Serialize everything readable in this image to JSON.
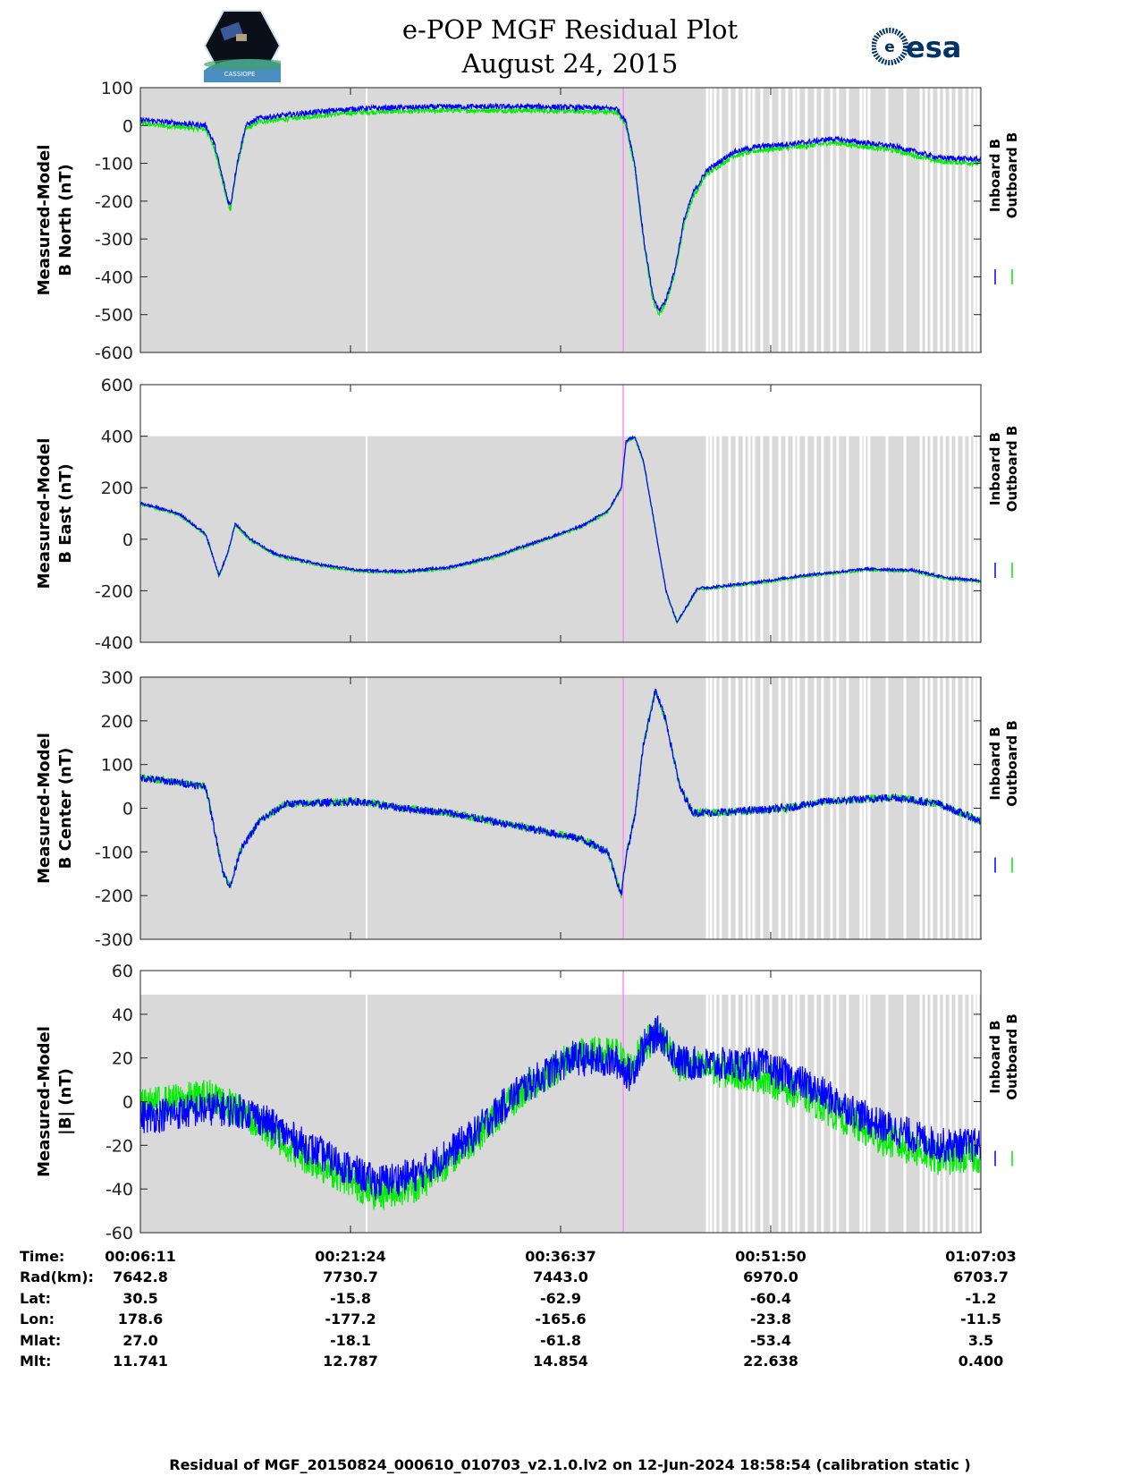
{
  "header": {
    "title_line1": "e-POP MGF Residual Plot",
    "title_line2": "August 24, 2015",
    "left_logo_text": "CASSIOPE",
    "right_logo_text": "esa"
  },
  "footer": "Residual of MGF_20150824_000610_010703_v2.1.0.lv2 on 12-Jun-2024 18:58:54 (calibration static )",
  "colors": {
    "inboard": "#0000ff",
    "outboard": "#00ee00",
    "background": "#d9d9d9",
    "marker": "#ff88ff"
  },
  "chart_data": {
    "type": "line",
    "x_unit": "seconds since 00:00:00 UT",
    "xlim": [
      371,
      4023
    ],
    "x_ticks": [
      371,
      1284,
      2197,
      3110,
      4023
    ],
    "legend": [
      "Inboard B",
      "Outboard B"
    ],
    "legend_placement": "right",
    "marker_time": 2469,
    "white_line_time": 1354,
    "gap_times": [
      2834,
      2850,
      2869,
      2892,
      2931,
      2963,
      2994,
      3017,
      3036,
      3071,
      3110,
      3149,
      3180,
      3211,
      3230,
      3265,
      3304,
      3335,
      3374,
      3401,
      3444,
      3502,
      3518,
      3537,
      3615,
      3693,
      3763,
      3786,
      3809,
      3840,
      3864,
      3891,
      3918,
      3949,
      3976,
      3996,
      4011
    ],
    "panels": [
      {
        "ylabel_line1": "Measured-Model",
        "ylabel_line2": "B North (nT)",
        "ylim": [
          -600,
          100
        ],
        "gray_max": 100,
        "yticks": [
          "100",
          "0",
          "-100",
          "-200",
          "-300",
          "-400",
          "-500",
          "-600"
        ],
        "noise": 7,
        "inboard": [
          [
            371,
            15
          ],
          [
            655,
            0
          ],
          [
            693,
            -50
          ],
          [
            752,
            -200
          ],
          [
            763,
            -210
          ],
          [
            791,
            -100
          ],
          [
            829,
            0
          ],
          [
            888,
            20
          ],
          [
            1121,
            35
          ],
          [
            1315,
            45
          ],
          [
            1704,
            50
          ],
          [
            2092,
            50
          ],
          [
            2442,
            45
          ],
          [
            2481,
            10
          ],
          [
            2519,
            -100
          ],
          [
            2558,
            -300
          ],
          [
            2597,
            -450
          ],
          [
            2624,
            -490
          ],
          [
            2655,
            -460
          ],
          [
            2694,
            -380
          ],
          [
            2733,
            -250
          ],
          [
            2772,
            -180
          ],
          [
            2830,
            -120
          ],
          [
            2947,
            -70
          ],
          [
            3063,
            -55
          ],
          [
            3258,
            -45
          ],
          [
            3374,
            -35
          ],
          [
            3646,
            -55
          ],
          [
            3840,
            -85
          ],
          [
            4023,
            -90
          ]
        ],
        "outboard_offset": -10
      },
      {
        "ylabel_line1": "Measured-Model",
        "ylabel_line2": "B East (nT)",
        "ylim": [
          -400,
          600
        ],
        "gray_max": 400,
        "yticks": [
          "600",
          "400",
          "200",
          "0",
          "-200",
          "-400"
        ],
        "noise": 5,
        "inboard": [
          [
            371,
            140
          ],
          [
            538,
            100
          ],
          [
            655,
            20
          ],
          [
            713,
            -140
          ],
          [
            752,
            -50
          ],
          [
            783,
            60
          ],
          [
            849,
            0
          ],
          [
            965,
            -60
          ],
          [
            1160,
            -100
          ],
          [
            1315,
            -120
          ],
          [
            1509,
            -125
          ],
          [
            1704,
            -110
          ],
          [
            1898,
            -70
          ],
          [
            2092,
            -10
          ],
          [
            2286,
            50
          ],
          [
            2403,
            110
          ],
          [
            2461,
            200
          ],
          [
            2481,
            380
          ],
          [
            2519,
            400
          ],
          [
            2558,
            300
          ],
          [
            2597,
            100
          ],
          [
            2655,
            -200
          ],
          [
            2702,
            -320
          ],
          [
            2752,
            -250
          ],
          [
            2791,
            -190
          ],
          [
            2869,
            -185
          ],
          [
            3063,
            -165
          ],
          [
            3258,
            -140
          ],
          [
            3529,
            -115
          ],
          [
            3724,
            -120
          ],
          [
            3879,
            -150
          ],
          [
            4023,
            -160
          ]
        ],
        "outboard_offset": -4
      },
      {
        "ylabel_line1": "Measured-Model",
        "ylabel_line2": "B Center (nT)",
        "ylim": [
          -300,
          300
        ],
        "gray_max": 300,
        "yticks": [
          "300",
          "200",
          "100",
          "0",
          "-100",
          "-200",
          "-300"
        ],
        "noise": 9,
        "inboard": [
          [
            371,
            70
          ],
          [
            655,
            50
          ],
          [
            693,
            -50
          ],
          [
            732,
            -150
          ],
          [
            763,
            -180
          ],
          [
            802,
            -100
          ],
          [
            888,
            -30
          ],
          [
            1004,
            10
          ],
          [
            1315,
            15
          ],
          [
            1509,
            0
          ],
          [
            1704,
            -10
          ],
          [
            1898,
            -30
          ],
          [
            2092,
            -50
          ],
          [
            2286,
            -70
          ],
          [
            2403,
            -100
          ],
          [
            2461,
            -200
          ],
          [
            2481,
            -110
          ],
          [
            2519,
            -20
          ],
          [
            2558,
            150
          ],
          [
            2609,
            270
          ],
          [
            2655,
            200
          ],
          [
            2714,
            50
          ],
          [
            2772,
            -10
          ],
          [
            2869,
            -10
          ],
          [
            3180,
            0
          ],
          [
            3335,
            15
          ],
          [
            3646,
            25
          ],
          [
            3840,
            10
          ],
          [
            4023,
            -30
          ]
        ],
        "outboard_offset": 0
      },
      {
        "ylabel_line1": "Measured-Model",
        "ylabel_line2": "|B| (nT)",
        "ylim": [
          -60,
          60
        ],
        "gray_max": 49,
        "yticks": [
          "60",
          "40",
          "20",
          "0",
          "-20",
          "-40",
          "-60"
        ],
        "noise": 8,
        "inboard": [
          [
            371,
            -7
          ],
          [
            693,
            -3
          ],
          [
            849,
            -5
          ],
          [
            1082,
            -20
          ],
          [
            1393,
            -37
          ],
          [
            1587,
            -33
          ],
          [
            1820,
            -15
          ],
          [
            2014,
            5
          ],
          [
            2247,
            20
          ],
          [
            2442,
            18
          ],
          [
            2500,
            12
          ],
          [
            2558,
            25
          ],
          [
            2624,
            32
          ],
          [
            2714,
            18
          ],
          [
            2830,
            17
          ],
          [
            3063,
            17
          ],
          [
            3258,
            8
          ],
          [
            3568,
            -10
          ],
          [
            3840,
            -20
          ],
          [
            4023,
            -20
          ]
        ],
        "outboard": [
          [
            371,
            -2
          ],
          [
            693,
            3
          ],
          [
            849,
            -8
          ],
          [
            1082,
            -25
          ],
          [
            1393,
            -42
          ],
          [
            1587,
            -38
          ],
          [
            1820,
            -17
          ],
          [
            2014,
            3
          ],
          [
            2247,
            21
          ],
          [
            2442,
            22
          ],
          [
            2500,
            15
          ],
          [
            2558,
            25
          ],
          [
            2624,
            32
          ],
          [
            2714,
            17
          ],
          [
            2830,
            15
          ],
          [
            3063,
            12
          ],
          [
            3258,
            3
          ],
          [
            3568,
            -16
          ],
          [
            3840,
            -26
          ],
          [
            4023,
            -25
          ]
        ]
      }
    ],
    "table": {
      "labels": [
        "Time:",
        "Rad(km):",
        "Lat:",
        "Lon:",
        "Mlat:",
        "Mlt:"
      ],
      "columns": [
        [
          "00:06:11",
          "7642.8",
          "30.5",
          "178.6",
          "27.0",
          "11.741"
        ],
        [
          "00:21:24",
          "7730.7",
          "-15.8",
          "-177.2",
          "-18.1",
          "12.787"
        ],
        [
          "00:36:37",
          "7443.0",
          "-62.9",
          "-165.6",
          "-61.8",
          "14.854"
        ],
        [
          "00:51:50",
          "6970.0",
          "-60.4",
          "-23.8",
          "-53.4",
          "22.638"
        ],
        [
          "01:07:03",
          "6703.7",
          "-1.2",
          "-11.5",
          "3.5",
          "0.400"
        ]
      ]
    }
  }
}
